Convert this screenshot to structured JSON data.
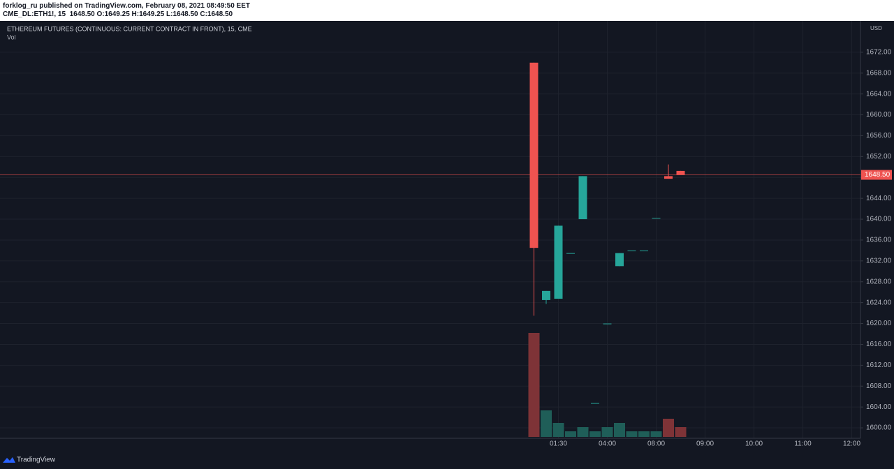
{
  "header": {
    "publisher": "forklog_ru published on TradingView.com, February 08, 2021 08:49:50 EET",
    "symbol": "CME_DL:ETH1!, 15",
    "ohlc": "1648.50 O:1649.25 H:1649.25 L:1648.50 C:1648.50"
  },
  "footer": {
    "brand": "TradingView"
  },
  "chart_data": {
    "type": "candlestick",
    "title": "ETHEREUM FUTURES (CONTINUOUS: CURRENT CONTRACT IN FRONT), 15, CME",
    "volume_label": "Vol",
    "currency": "USD",
    "categories": [
      null,
      null,
      "01:30",
      null,
      null,
      null,
      "04:00",
      null,
      null,
      null,
      "08:00",
      null,
      null,
      null,
      "09:00",
      null,
      null,
      null,
      "10:00",
      null,
      null,
      null,
      "11:00",
      null,
      null,
      null,
      "12:00"
    ],
    "open": [
      1670,
      1624.5,
      1624.75,
      1633.5,
      1640,
      1604.75,
      1620,
      1631,
      1634,
      1634,
      1640.25,
      1648.25,
      1649.25,
      null,
      null,
      null,
      null,
      null,
      null,
      null,
      null,
      null,
      null,
      null,
      null,
      null,
      null
    ],
    "high": [
      1670,
      1626.25,
      1638.75,
      1633.5,
      1648.25,
      1604.75,
      1620,
      1633.5,
      1634,
      1634,
      1640.25,
      1650.5,
      1649.25,
      null,
      null,
      null,
      null,
      null,
      null,
      null,
      null,
      null,
      null,
      null,
      null,
      null,
      null
    ],
    "low": [
      1621.5,
      1623.75,
      1624.75,
      1633.5,
      1640,
      1604.75,
      1620,
      1631,
      1634,
      1634,
      1640.25,
      1647.75,
      1648.5,
      null,
      null,
      null,
      null,
      null,
      null,
      null,
      null,
      null,
      null,
      null,
      null,
      null,
      null
    ],
    "close": [
      1634.5,
      1626.25,
      1638.75,
      1633.5,
      1648.25,
      1604.75,
      1620,
      1633.5,
      1634,
      1634,
      1640.25,
      1647.75,
      1648.5,
      null,
      null,
      null,
      null,
      null,
      null,
      null,
      null,
      null,
      null,
      null,
      null,
      null,
      null
    ],
    "volume": [
      149,
      38,
      20,
      8,
      14,
      8,
      14,
      20,
      8,
      8,
      8,
      26,
      14,
      null,
      null,
      null,
      null,
      null,
      null,
      null,
      null,
      null,
      null,
      null,
      null,
      null,
      null
    ],
    "volume_lim": [
      0,
      160
    ],
    "up_color": "#26a69a",
    "down_color": "#ef5350",
    "volume_up_color": "#1f5e58",
    "volume_down_color": "#7e3337",
    "last_price": 1648.5,
    "last_price_label": "1648.50",
    "ylim": [
      1598,
      1678
    ],
    "yticks": [
      {
        "value": 1600,
        "label": "1600.00"
      },
      {
        "value": 1604,
        "label": "1604.00"
      },
      {
        "value": 1608,
        "label": "1608.00"
      },
      {
        "value": 1612,
        "label": "1612.00"
      },
      {
        "value": 1616,
        "label": "1616.00"
      },
      {
        "value": 1620,
        "label": "1620.00"
      },
      {
        "value": 1624,
        "label": "1624.00"
      },
      {
        "value": 1628,
        "label": "1628.00"
      },
      {
        "value": 1632,
        "label": "1632.00"
      },
      {
        "value": 1636,
        "label": "1636.00"
      },
      {
        "value": 1640,
        "label": "1640.00"
      },
      {
        "value": 1644,
        "label": "1644.00"
      },
      {
        "value": 1648,
        "label": "1648.00"
      },
      {
        "value": 1652,
        "label": "1652.00"
      },
      {
        "value": 1656,
        "label": "1656.00"
      },
      {
        "value": 1660,
        "label": "1660.00"
      },
      {
        "value": 1664,
        "label": "1664.00"
      },
      {
        "value": 1668,
        "label": "1668.00"
      },
      {
        "value": 1672,
        "label": "1672.00"
      }
    ],
    "grid": true
  }
}
